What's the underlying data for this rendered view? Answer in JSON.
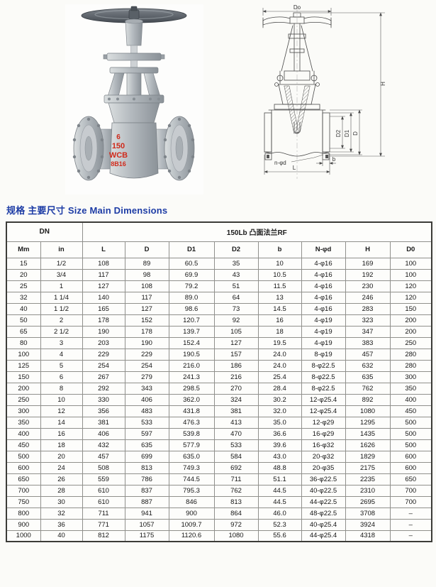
{
  "colors": {
    "title_blue": "#1d3ca5",
    "marking_red": "#cf2a1b",
    "line_gray": "#4a4a4a",
    "border_dark": "#3c3c38",
    "border_light": "#90908c",
    "page_bg": "#fbfbf8"
  },
  "figures": {
    "photo_markings": [
      "6",
      "150",
      "WCB",
      "8B16"
    ],
    "drawing_labels": {
      "do": "Do",
      "h": "H",
      "d2": "D2",
      "d1": "D1",
      "d": "D",
      "n_phi_d": "n-φd",
      "l": "L",
      "b": "b"
    }
  },
  "title": "规格 主要尺寸 Size Main Dimensions",
  "table": {
    "group_headers": {
      "dn": "DN",
      "series": "150Lb 凸面法兰RF"
    },
    "columns": [
      "Mm",
      "in",
      "L",
      "D",
      "D1",
      "D2",
      "b",
      "N-φd",
      "H",
      "D0"
    ],
    "rows": [
      [
        "15",
        "1/2",
        "108",
        "89",
        "60.5",
        "35",
        "10",
        "4-φ16",
        "169",
        "100"
      ],
      [
        "20",
        "3/4",
        "117",
        "98",
        "69.9",
        "43",
        "10.5",
        "4-φ16",
        "192",
        "100"
      ],
      [
        "25",
        "1",
        "127",
        "108",
        "79.2",
        "51",
        "11.5",
        "4-φ16",
        "230",
        "120"
      ],
      [
        "32",
        "1 1/4",
        "140",
        "117",
        "89.0",
        "64",
        "13",
        "4-φ16",
        "246",
        "120"
      ],
      [
        "40",
        "1 1/2",
        "165",
        "127",
        "98.6",
        "73",
        "14.5",
        "4-φ16",
        "283",
        "150"
      ],
      [
        "50",
        "2",
        "178",
        "152",
        "120.7",
        "92",
        "16",
        "4-φ19",
        "323",
        "200"
      ],
      [
        "65",
        "2 1/2",
        "190",
        "178",
        "139.7",
        "105",
        "18",
        "4-φ19",
        "347",
        "200"
      ],
      [
        "80",
        "3",
        "203",
        "190",
        "152.4",
        "127",
        "19.5",
        "4-φ19",
        "383",
        "250"
      ],
      [
        "100",
        "4",
        "229",
        "229",
        "190.5",
        "157",
        "24.0",
        "8-φ19",
        "457",
        "280"
      ],
      [
        "125",
        "5",
        "254",
        "254",
        "216.0",
        "186",
        "24.0",
        "8-φ22.5",
        "632",
        "280"
      ],
      [
        "150",
        "6",
        "267",
        "279",
        "241.3",
        "216",
        "25.4",
        "8-φ22.5",
        "635",
        "300"
      ],
      [
        "200",
        "8",
        "292",
        "343",
        "298.5",
        "270",
        "28.4",
        "8-φ22.5",
        "762",
        "350"
      ],
      [
        "250",
        "10",
        "330",
        "406",
        "362.0",
        "324",
        "30.2",
        "12-φ25.4",
        "892",
        "400"
      ],
      [
        "300",
        "12",
        "356",
        "483",
        "431.8",
        "381",
        "32.0",
        "12-φ25.4",
        "1080",
        "450"
      ],
      [
        "350",
        "14",
        "381",
        "533",
        "476.3",
        "413",
        "35.0",
        "12-φ29",
        "1295",
        "500"
      ],
      [
        "400",
        "16",
        "406",
        "597",
        "539.8",
        "470",
        "36.6",
        "16-φ29",
        "1435",
        "500"
      ],
      [
        "450",
        "18",
        "432",
        "635",
        "577.9",
        "533",
        "39.6",
        "16-φ32",
        "1626",
        "500"
      ],
      [
        "500",
        "20",
        "457",
        "699",
        "635.0",
        "584",
        "43.0",
        "20-φ32",
        "1829",
        "600"
      ],
      [
        "600",
        "24",
        "508",
        "813",
        "749.3",
        "692",
        "48.8",
        "20-φ35",
        "2175",
        "600"
      ],
      [
        "650",
        "26",
        "559",
        "786",
        "744.5",
        "711",
        "51.1",
        "36-φ22.5",
        "2235",
        "650"
      ],
      [
        "700",
        "28",
        "610",
        "837",
        "795.3",
        "762",
        "44.5",
        "40-φ22.5",
        "2310",
        "700"
      ],
      [
        "750",
        "30",
        "610",
        "887",
        "846",
        "813",
        "44.5",
        "44-φ22.5",
        "2695",
        "700"
      ],
      [
        "800",
        "32",
        "711",
        "941",
        "900",
        "864",
        "46.0",
        "48-φ22.5",
        "3708",
        "–"
      ],
      [
        "900",
        "36",
        "771",
        "1057",
        "1009.7",
        "972",
        "52.3",
        "40-φ25.4",
        "3924",
        "–"
      ],
      [
        "1000",
        "40",
        "812",
        "1175",
        "1120.6",
        "1080",
        "55.6",
        "44-φ25.4",
        "4318",
        "–"
      ]
    ]
  }
}
